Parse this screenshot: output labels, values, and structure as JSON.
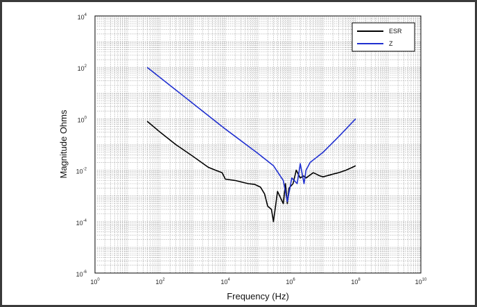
{
  "chart_data": {
    "type": "line",
    "xlabel": "Frequency (Hz)",
    "ylabel": "Magnitude Ohms",
    "xscale": "log",
    "yscale": "log",
    "xlim": [
      1,
      10000000000
    ],
    "ylim": [
      1e-06,
      10000
    ],
    "x_ticks": [
      {
        "base": "10",
        "exp": "0",
        "value": 1
      },
      {
        "base": "10",
        "exp": "2",
        "value": 100
      },
      {
        "base": "10",
        "exp": "4",
        "value": 10000
      },
      {
        "base": "10",
        "exp": "6",
        "value": 1000000
      },
      {
        "base": "10",
        "exp": "8",
        "value": 100000000
      },
      {
        "base": "10",
        "exp": "10",
        "value": 10000000000
      }
    ],
    "y_ticks": [
      {
        "base": "10",
        "exp": "4",
        "value": 10000
      },
      {
        "base": "10",
        "exp": "2",
        "value": 100
      },
      {
        "base": "10",
        "exp": "0",
        "value": 1
      },
      {
        "base": "10",
        "exp": "-2",
        "value": 0.01
      },
      {
        "base": "10",
        "exp": "-4",
        "value": 0.0001
      },
      {
        "base": "10",
        "exp": "-6",
        "value": 1e-06
      }
    ],
    "grid": true,
    "legend_position": "top-right",
    "series": [
      {
        "name": "ESR",
        "color": "#000000",
        "points": [
          [
            40,
            0.8
          ],
          [
            100,
            0.3
          ],
          [
            300,
            0.1
          ],
          [
            1000,
            0.035
          ],
          [
            3000,
            0.013
          ],
          [
            5000,
            0.01
          ],
          [
            8000,
            0.008
          ],
          [
            10000,
            0.0045
          ],
          [
            20000,
            0.004
          ],
          [
            50000,
            0.003
          ],
          [
            80000,
            0.0028
          ],
          [
            120000,
            0.0022
          ],
          [
            160000,
            0.0012
          ],
          [
            200000,
            0.0004
          ],
          [
            260000,
            0.0003
          ],
          [
            300000,
            0.0001
          ],
          [
            400000,
            0.0015
          ],
          [
            600000,
            0.0005
          ],
          [
            700000,
            0.003
          ],
          [
            800000,
            0.0005
          ],
          [
            900000,
            0.002
          ],
          [
            1200000,
            0.003
          ],
          [
            1500000,
            0.01
          ],
          [
            2000000,
            0.005
          ],
          [
            2500000,
            0.006
          ],
          [
            3000000,
            0.005
          ],
          [
            5000000,
            0.008
          ],
          [
            8000000,
            0.006
          ],
          [
            10000000,
            0.0055
          ],
          [
            20000000,
            0.007
          ],
          [
            30000000,
            0.008
          ],
          [
            50000000,
            0.01
          ],
          [
            80000000,
            0.013
          ],
          [
            100000000,
            0.015
          ]
        ]
      },
      {
        "name": "Z",
        "color": "#1f2fd0",
        "points": [
          [
            40,
            100
          ],
          [
            100,
            40
          ],
          [
            1000,
            4
          ],
          [
            10000,
            0.4
          ],
          [
            100000,
            0.045
          ],
          [
            300000,
            0.015
          ],
          [
            600000,
            0.004
          ],
          [
            800000,
            0.0006
          ],
          [
            1100000,
            0.005
          ],
          [
            1600000,
            0.003
          ],
          [
            2000000,
            0.018
          ],
          [
            2600000,
            0.003
          ],
          [
            3000000,
            0.01
          ],
          [
            4000000,
            0.02
          ],
          [
            10000000,
            0.05
          ],
          [
            30000000,
            0.2
          ],
          [
            100000000,
            1
          ]
        ]
      }
    ]
  }
}
